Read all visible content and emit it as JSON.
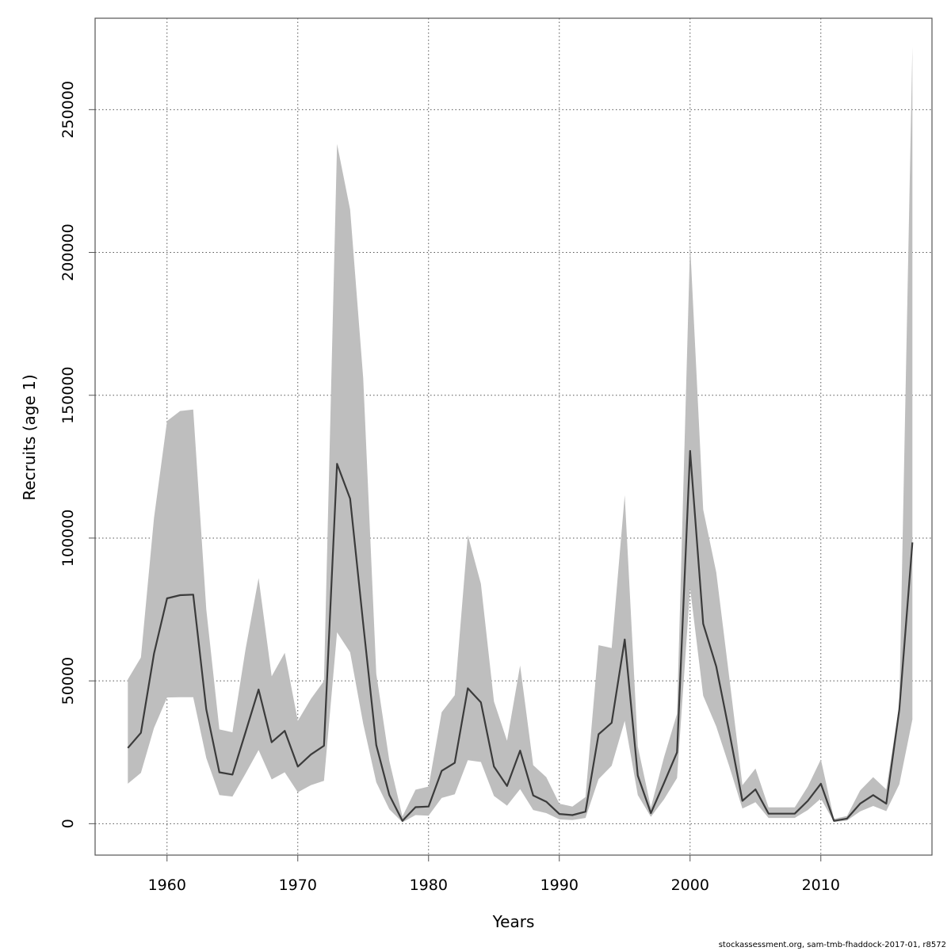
{
  "chart_data": {
    "type": "line",
    "title": "",
    "xlabel": "Years",
    "ylabel": "Recruits (age 1)",
    "xlim": [
      1954.5,
      2018.5
    ],
    "ylim": [
      -11000,
      282000
    ],
    "x_ticks": [
      1960,
      1970,
      1980,
      1990,
      2000,
      2010
    ],
    "y_ticks": [
      0,
      50000,
      100000,
      150000,
      200000,
      250000
    ],
    "grid": true,
    "x": [
      1957,
      1958,
      1959,
      1960,
      1961,
      1962,
      1963,
      1964,
      1965,
      1966,
      1967,
      1968,
      1969,
      1970,
      1971,
      1972,
      1973,
      1974,
      1975,
      1976,
      1977,
      1978,
      1979,
      1980,
      1981,
      1982,
      1983,
      1984,
      1985,
      1986,
      1987,
      1988,
      1989,
      1990,
      1991,
      1992,
      1993,
      1994,
      1995,
      1996,
      1997,
      1998,
      1999,
      2000,
      2001,
      2002,
      2003,
      2004,
      2005,
      2006,
      2007,
      2008,
      2009,
      2010,
      2011,
      2012,
      2013,
      2014,
      2015,
      2016,
      2017
    ],
    "series": [
      {
        "role": "estimate",
        "color": "#3b3b3b",
        "values": [
          26500,
          31800,
          59500,
          78900,
          80000,
          80200,
          40000,
          18000,
          17200,
          32000,
          47000,
          28500,
          32500,
          20000,
          24200,
          27300,
          126000,
          113800,
          70000,
          27500,
          10000,
          1000,
          5800,
          6000,
          18500,
          21300,
          47400,
          42500,
          20000,
          13200,
          25600,
          9900,
          7700,
          3400,
          3000,
          4200,
          31300,
          35300,
          64500,
          16800,
          3700,
          14200,
          25000,
          130500,
          70000,
          55000,
          32000,
          8000,
          12000,
          3500,
          3500,
          3500,
          8000,
          14000,
          1000,
          1800,
          7000,
          10000,
          7000,
          40000,
          98500
        ]
      },
      {
        "role": "upper-bound",
        "color": "#bebebe",
        "values": [
          50500,
          58200,
          107000,
          141000,
          144500,
          145000,
          75000,
          33000,
          32000,
          61000,
          86000,
          51600,
          59800,
          36000,
          43700,
          50000,
          238000,
          215000,
          156000,
          52500,
          22000,
          2500,
          11900,
          13000,
          39000,
          45000,
          101000,
          84000,
          42800,
          29000,
          55400,
          20500,
          16300,
          7000,
          6000,
          9300,
          62500,
          61500,
          115000,
          27000,
          5700,
          23200,
          38500,
          203000,
          110000,
          88000,
          51000,
          13500,
          19300,
          5700,
          5700,
          5700,
          13000,
          22500,
          1700,
          2700,
          11600,
          16300,
          12000,
          41500,
          272000
        ]
      },
      {
        "role": "lower-bound",
        "color": "#bebebe",
        "values": [
          14000,
          17800,
          33500,
          44200,
          44300,
          44300,
          23000,
          10000,
          9500,
          17500,
          25800,
          15500,
          18000,
          11000,
          13500,
          15000,
          67000,
          60000,
          35000,
          14500,
          5000,
          500,
          3000,
          2800,
          9000,
          10300,
          22200,
          21600,
          9700,
          6300,
          12100,
          4800,
          3700,
          1500,
          1300,
          2000,
          15600,
          20300,
          36000,
          10000,
          2400,
          8500,
          16000,
          82500,
          44800,
          34000,
          20000,
          5300,
          7500,
          2000,
          2000,
          2000,
          4800,
          8800,
          600,
          1100,
          4300,
          6200,
          4400,
          13800,
          36500
        ]
      }
    ]
  },
  "footer": {
    "credit": "stockassessment.org, sam-tmb-fhaddock-2017-01, r8572"
  }
}
